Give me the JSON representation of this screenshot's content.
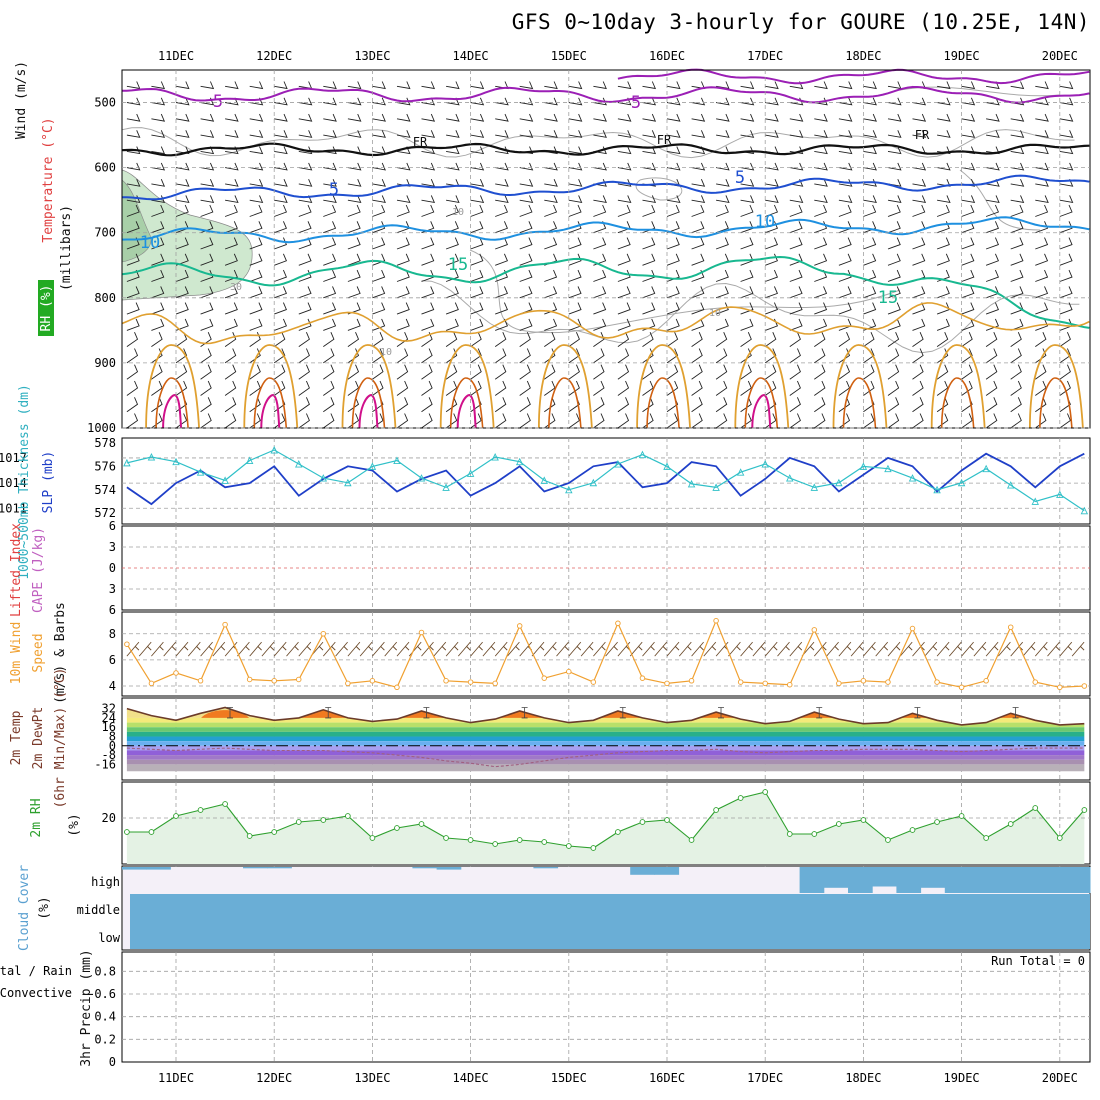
{
  "title": "GFS 0~10day 3-hourly for GOURE (10.25E, 14N)",
  "dates": [
    "11DEC",
    "12DEC",
    "13DEC",
    "14DEC",
    "15DEC",
    "16DEC",
    "17DEC",
    "18DEC",
    "19DEC",
    "20DEC"
  ],
  "panel_labels": {
    "wind": "Wind (m/s)",
    "temperature": "Temperature (°C)",
    "rh": "RH (%)",
    "millibars": "(millibars)",
    "thickness": "1000~500mb Thickness (dm)",
    "slp": "SLP (mb)",
    "lifted_index": "Lifted Index",
    "cape": "CAPE (J/kg)",
    "wind10": "10m Wind",
    "speed": "Speed",
    "barbs": "(m/s) & Barbs",
    "temp2m": "2m Temp",
    "dewpt2m": "2m DewPt",
    "minmax": "(6hr Min/Max) (°C)",
    "rh2m": "2m RH",
    "pct": "(%)",
    "cloud": "Cloud Cover",
    "cloud_pct": "(%)",
    "precip_total": "Total / Rain",
    "precip_conv": "Convective",
    "precip": "3hr Precip (mm)",
    "run_total": "Run Total = 0"
  },
  "colors": {
    "contour_5_upper": "#9b1fb5",
    "freezing": "#111111",
    "contour_5": "#1f4fd0",
    "contour_10": "#1e90e0",
    "contour_15": "#18b890",
    "warm_orange": "#e0a030",
    "dark_orange": "#d06010",
    "magenta": "#d0108a",
    "rh_fill": "#cfe8cf",
    "slp_line": "#1f3fc8",
    "thick_line": "#30c0c8",
    "wind_speed": "#f0a030",
    "rh2m_line": "#2ea02e",
    "rh2m_fill": "#e4f2e4",
    "cloud": "#6aaed6",
    "grid": "#a0a0a0"
  },
  "chart_data": [
    {
      "type": "line",
      "name": "cross-section",
      "y_label": "(millibars)",
      "ylim": [
        1000,
        450
      ],
      "y_ticks": [
        500,
        600,
        700,
        800,
        900,
        1000
      ],
      "contour_labels": [
        "5",
        "5",
        "FR",
        "FR",
        "FR",
        "5",
        "5",
        "10",
        "10",
        "15",
        "15",
        "10",
        "10",
        "30",
        "10"
      ]
    },
    {
      "type": "line",
      "name": "thickness-slp",
      "x": [
        0,
        0.25,
        0.5,
        0.75,
        1,
        1.25,
        1.5,
        1.75,
        2,
        2.25,
        2.5,
        2.75,
        3,
        3.25,
        3.5,
        3.75,
        4,
        4.25,
        4.5,
        4.75,
        5,
        5.25,
        5.5,
        5.75,
        6,
        6.25,
        6.5,
        6.75,
        7,
        7.25,
        7.5,
        7.75,
        8,
        8.25,
        8.5,
        8.75,
        9,
        9.25,
        9.5,
        9.75
      ],
      "thickness_ticks": [
        572,
        574,
        576,
        578
      ],
      "slp_ticks": [
        1011,
        1014,
        1017
      ],
      "series": [
        {
          "name": "SLP (mb)",
          "values": [
            1013.5,
            1011.5,
            1014,
            1015.5,
            1013.5,
            1014,
            1016,
            1012.5,
            1014.5,
            1016,
            1015.5,
            1013,
            1014.5,
            1015.5,
            1012.5,
            1014,
            1016,
            1013,
            1014,
            1016,
            1016.5,
            1013.5,
            1014,
            1016.5,
            1016,
            1012.5,
            1014.5,
            1017,
            1016,
            1013,
            1015,
            1017,
            1016,
            1013,
            1015.5,
            1017.5,
            1016,
            1013.5,
            1016,
            1017.5
          ]
        },
        {
          "name": "1000~500mb Thickness (dm)",
          "values": [
            576.3,
            576.8,
            576.4,
            575.5,
            574.8,
            576.5,
            577.4,
            576.2,
            575.0,
            574.6,
            576.0,
            576.5,
            575.0,
            574.2,
            575.4,
            576.8,
            576.4,
            574.8,
            574.0,
            574.6,
            576.2,
            577.0,
            576.0,
            574.5,
            574.2,
            575.5,
            576.2,
            575.0,
            574.2,
            574.6,
            576.0,
            575.8,
            575.0,
            574.0,
            574.6,
            575.8,
            574.4,
            573.0,
            573.6,
            572.2
          ]
        }
      ]
    },
    {
      "type": "line",
      "name": "lifted-index-cape",
      "y_ticks": [
        6,
        3,
        0,
        -3,
        -6
      ],
      "series": [
        {
          "name": "Lifted Index",
          "values": []
        }
      ]
    },
    {
      "type": "line",
      "name": "10m-wind",
      "x": [
        0,
        0.25,
        0.5,
        0.75,
        1,
        1.25,
        1.5,
        1.75,
        2,
        2.25,
        2.5,
        2.75,
        3,
        3.25,
        3.5,
        3.75,
        4,
        4.25,
        4.5,
        4.75,
        5,
        5.25,
        5.5,
        5.75,
        6,
        6.25,
        6.5,
        6.75,
        7,
        7.25,
        7.5,
        7.75,
        8,
        8.25,
        8.5,
        8.75,
        9,
        9.25,
        9.5,
        9.75
      ],
      "y_ticks": [
        4,
        6,
        8
      ],
      "series": [
        {
          "name": "10m Wind Speed (m/s)",
          "values": [
            7.2,
            4.2,
            5.0,
            4.4,
            8.7,
            4.5,
            4.4,
            4.5,
            8.0,
            4.2,
            4.4,
            3.9,
            8.1,
            4.4,
            4.3,
            4.2,
            8.6,
            4.6,
            5.1,
            4.3,
            8.8,
            4.6,
            4.2,
            4.4,
            9.0,
            4.3,
            4.2,
            4.1,
            8.3,
            4.2,
            4.4,
            4.3,
            8.4,
            4.3,
            3.9,
            4.4,
            8.5,
            4.3,
            3.9,
            4.0
          ]
        }
      ]
    },
    {
      "type": "area",
      "name": "2m-temp-dewpt",
      "x": [
        0,
        0.25,
        0.5,
        0.75,
        1,
        1.25,
        1.5,
        1.75,
        2,
        2.25,
        2.5,
        2.75,
        3,
        3.25,
        3.5,
        3.75,
        4,
        4.25,
        4.5,
        4.75,
        5,
        5.25,
        5.5,
        5.75,
        6,
        6.25,
        6.5,
        6.75,
        7,
        7.25,
        7.5,
        7.75,
        8,
        8.25,
        8.5,
        8.75,
        9,
        9.25,
        9.5,
        9.75
      ],
      "y_ticks": [
        32,
        24,
        16,
        8,
        0,
        -8,
        -16
      ],
      "series": [
        {
          "name": "2m Temp",
          "values": [
            32,
            26,
            22,
            28,
            33,
            26,
            22,
            24,
            31,
            24,
            21,
            23,
            30,
            24,
            20,
            23,
            30,
            24,
            20,
            22,
            30,
            24,
            20,
            22,
            29,
            23,
            19,
            21,
            29,
            23,
            19,
            20,
            28,
            22,
            18,
            20,
            28,
            22,
            18,
            19
          ]
        },
        {
          "name": "2m DewPt",
          "values": [
            -2,
            -3,
            -4,
            -3,
            -2,
            -3,
            -4,
            -4,
            -4,
            -5,
            -6,
            -8,
            -10,
            -13,
            -15,
            -18,
            -16,
            -13,
            -10,
            -8,
            -6,
            -5,
            -4,
            -4,
            -3,
            -5,
            -6,
            -5,
            -4,
            -4,
            -3,
            -3,
            -3,
            -4,
            -5,
            -4,
            -3,
            -2,
            -2,
            -2
          ]
        }
      ]
    },
    {
      "type": "area",
      "name": "2m-rh",
      "x": [
        0,
        0.25,
        0.5,
        0.75,
        1,
        1.25,
        1.5,
        1.75,
        2,
        2.25,
        2.5,
        2.75,
        3,
        3.25,
        3.5,
        3.75,
        4,
        4.25,
        4.5,
        4.75,
        5,
        5.25,
        5.5,
        5.75,
        6,
        6.25,
        6.5,
        6.75,
        7,
        7.25,
        7.5,
        7.75,
        8,
        8.25,
        8.5,
        8.75,
        9,
        9.25,
        9.5,
        9.75
      ],
      "y_ticks": [
        20
      ],
      "series": [
        {
          "name": "2m RH (%)",
          "values": [
            13,
            13,
            21,
            24,
            27,
            11,
            13,
            18,
            19,
            21,
            10,
            15,
            17,
            10,
            9,
            7,
            9,
            8,
            6,
            5,
            13,
            18,
            19,
            9,
            24,
            30,
            33,
            12,
            12,
            17,
            19,
            9,
            14,
            18,
            21,
            10,
            17,
            25,
            10,
            24
          ]
        }
      ]
    },
    {
      "type": "area",
      "name": "cloud-cover",
      "levels": [
        "high",
        "middle",
        "low"
      ],
      "series": [
        {
          "name": "high cloud (%)",
          "values": [
            10,
            10,
            0,
            0,
            0,
            5,
            5,
            0,
            0,
            0,
            0,
            0,
            5,
            10,
            0,
            0,
            0,
            5,
            0,
            0,
            0,
            30,
            30,
            0,
            0,
            0,
            0,
            0,
            100,
            80,
            100,
            75,
            100,
            80,
            100,
            100,
            100,
            100,
            100,
            100
          ]
        }
      ]
    },
    {
      "type": "bar",
      "name": "3hr-precip",
      "ylim": [
        0,
        0.9
      ],
      "y_ticks": [
        0,
        0.2,
        0.4,
        0.6,
        0.8
      ],
      "series": [
        {
          "name": "3hr Precip (mm)",
          "values": [
            0,
            0,
            0,
            0,
            0,
            0,
            0,
            0,
            0,
            0,
            0,
            0,
            0,
            0,
            0,
            0,
            0,
            0,
            0,
            0,
            0,
            0,
            0,
            0,
            0,
            0,
            0,
            0,
            0,
            0,
            0,
            0,
            0,
            0,
            0,
            0,
            0,
            0,
            0,
            0
          ]
        }
      ]
    }
  ]
}
